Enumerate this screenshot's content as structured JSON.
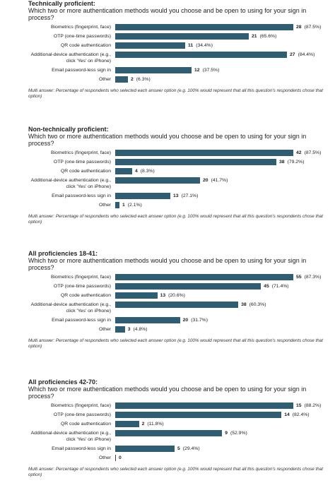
{
  "chart_data": [
    {
      "type": "bar",
      "title": "Technically proficient:",
      "subtitle": "Which two or more authentication methods would you choose and be open to using for your sign in process?",
      "categories": [
        "Biometrics (fingerprint, face)",
        "OTP (one-time passwords)",
        "QR code authentication",
        "Additional-device authentication (e.g., click 'Yes' on iPhone)",
        "Email password-less sign in",
        "Other"
      ],
      "values": [
        28,
        21,
        11,
        27,
        12,
        2
      ],
      "percent_labels": [
        "(87.5%)",
        "(65.6%)",
        "(34.4%)",
        "(84.4%)",
        "(37.5%)",
        "(6.3%)"
      ],
      "color": "#2f5e72",
      "footnote": "Multi answer: Percentage of respondents who selected each answer option (e.g. 100% would represent that all this question's respondents chose that option)"
    },
    {
      "type": "bar",
      "title": "Non-technically proficient:",
      "subtitle": "Which two or more authentication methods would you choose and be open to using for your sign in process?",
      "categories": [
        "Biometrics (fingerprint, face)",
        "OTP (one-time passwords)",
        "QR code authentication",
        "Additional-device authentication (e.g., click 'Yes' on iPhone)",
        "Email password-less sign in",
        "Other"
      ],
      "values": [
        42,
        38,
        4,
        20,
        13,
        1
      ],
      "percent_labels": [
        "(87.5%)",
        "(79.2%)",
        "(8.3%)",
        "(41.7%)",
        "(27.1%)",
        "(2.1%)"
      ],
      "color": "#2f5e72",
      "footnote": "Multi answer: Percentage of respondents who selected each answer option (e.g. 100% would represent that all this question's respondents chose that option)"
    },
    {
      "type": "bar",
      "title": "All proficiencies 18-41:",
      "subtitle": "Which two or more authentication methods would you choose and be open to using for your sign in process?",
      "categories": [
        "Biometrics (fingerprint, face)",
        "OTP (one-time passwords)",
        "QR code authentication",
        "Additional-device authentication (e.g., click 'Yes' on iPhone)",
        "Email password-less sign in",
        "Other"
      ],
      "values": [
        55,
        45,
        13,
        38,
        20,
        3
      ],
      "percent_labels": [
        "(87.3%)",
        "(71.4%)",
        "(20.6%)",
        "(60.3%)",
        "(31.7%)",
        "(4.8%)"
      ],
      "color": "#2f5e72",
      "footnote": "Multi answer: Percentage of respondents who selected each answer option (e.g. 100% would represent that all this question's respondents chose that option)"
    },
    {
      "type": "bar",
      "title": "All proficiencies 42-70:",
      "subtitle": "Which two or more authentication methods would you choose and be open to using for your sign in process?",
      "categories": [
        "Biometrics (fingerprint, face)",
        "OTP (one-time passwords)",
        "QR code authentication",
        "Additional-device authentication (e.g., click 'Yes' on iPhone)",
        "Email password-less sign in",
        "Other"
      ],
      "values": [
        15,
        14,
        2,
        9,
        5,
        0
      ],
      "percent_labels": [
        "(88.2%)",
        "(82.4%)",
        "(11.8%)",
        "(52.9%)",
        "(29.4%)",
        null
      ],
      "color": "#2f5e72",
      "footnote": "Multi answer: Percentage of respondents who selected each answer option (e.g. 100% would represent that all this question's respondents chose that option)"
    }
  ]
}
